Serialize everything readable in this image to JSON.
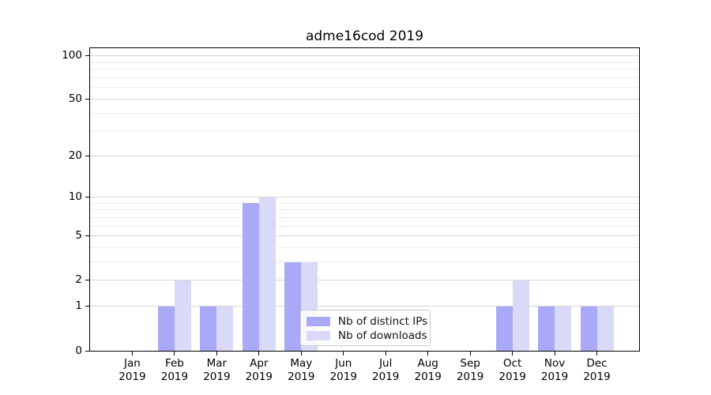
{
  "chart_data": {
    "type": "bar",
    "title": "adme16cod 2019",
    "x_months": [
      "Jan",
      "Feb",
      "Mar",
      "Apr",
      "May",
      "Jun",
      "Jul",
      "Aug",
      "Sep",
      "Oct",
      "Nov",
      "Dec"
    ],
    "x_year": "2019",
    "series": [
      {
        "name": "Nb of distinct IPs",
        "color": "#a9a9f8",
        "values": [
          0,
          1,
          1,
          9,
          3,
          0,
          0,
          0,
          0,
          1,
          1,
          1
        ]
      },
      {
        "name": "Nb of downloads",
        "color": "#d9d9f8",
        "values": [
          0,
          2,
          1,
          10,
          3,
          0,
          0,
          0,
          0,
          2,
          1,
          1
        ]
      }
    ],
    "yscale": "log1p",
    "ylim": [
      0,
      100
    ],
    "yticks": [
      0,
      1,
      2,
      5,
      10,
      20,
      50,
      100
    ],
    "yticks_minor": [
      3,
      4,
      6,
      7,
      8,
      9,
      30,
      40,
      60,
      70,
      80,
      90
    ],
    "grid": "horizontal-only",
    "legend_position": "lower-center",
    "colors": {
      "major_grid": "#d6d6d6",
      "minor_grid": "#ededed",
      "axis": "#000000",
      "legend_border": "#cccccc"
    }
  }
}
